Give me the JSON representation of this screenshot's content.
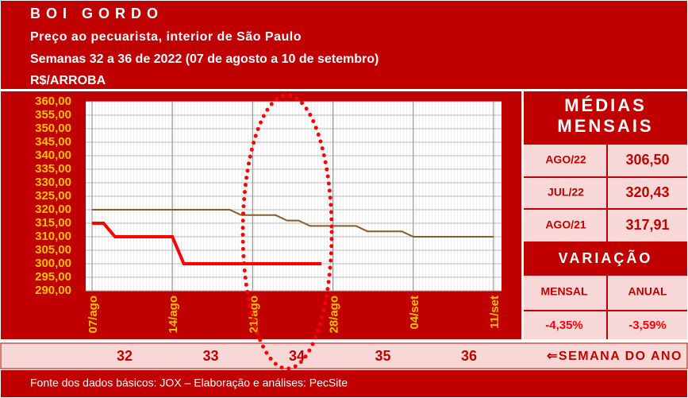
{
  "header": {
    "title": "BOI GORDO",
    "subtitle": "Preço ao pecuarista, interior de São Paulo",
    "period": "Semanas 32 a 36 de 2022 (07 de agosto a 10 de setembro)",
    "unit": "R$/ARROBA"
  },
  "chart_data": {
    "type": "line",
    "categories": [
      "07/ago",
      null,
      null,
      null,
      null,
      null,
      null,
      "14/ago",
      null,
      null,
      null,
      null,
      null,
      null,
      "21/ago",
      null,
      null,
      null,
      null,
      null,
      null,
      "28/ago",
      null,
      null,
      null,
      null,
      null,
      null,
      "04/set",
      null,
      null,
      null,
      null,
      null,
      null,
      "11/set"
    ],
    "series": [
      {
        "color": "#8b5a2b",
        "width": 2,
        "values": [
          320,
          320,
          320,
          320,
          320,
          320,
          320,
          320,
          320,
          320,
          320,
          320,
          320,
          318,
          318,
          318,
          318,
          316,
          316,
          314,
          314,
          314,
          314,
          314,
          312,
          312,
          312,
          312,
          310,
          310,
          310,
          310,
          310,
          310,
          310,
          310
        ]
      },
      {
        "color": "#ff0000",
        "width": 4,
        "values": [
          315,
          315,
          310,
          310,
          310,
          310,
          310,
          310,
          300,
          300,
          300,
          300,
          300,
          300,
          300,
          300,
          300,
          300,
          300,
          300,
          300,
          null,
          null,
          null,
          null,
          null,
          null,
          null,
          null,
          null,
          null,
          null,
          null,
          null,
          null,
          null
        ]
      }
    ],
    "ylim": [
      290,
      360
    ],
    "yticks": [
      {
        "value": 290,
        "label": "290,00"
      },
      {
        "value": 295,
        "label": "295,00"
      },
      {
        "value": 300,
        "label": "300,00"
      },
      {
        "value": 305,
        "label": "305,00"
      },
      {
        "value": 310,
        "label": "310,00"
      },
      {
        "value": 315,
        "label": "315,00"
      },
      {
        "value": 320,
        "label": "320,00"
      },
      {
        "value": 325,
        "label": "325,00"
      },
      {
        "value": 330,
        "label": "330,00"
      },
      {
        "value": 335,
        "label": "335,00"
      },
      {
        "value": 340,
        "label": "340,00"
      },
      {
        "value": 345,
        "label": "345,00"
      },
      {
        "value": 350,
        "label": "350,00"
      },
      {
        "value": 355,
        "label": "355,00"
      },
      {
        "value": 360,
        "label": "360,00"
      }
    ],
    "grid": true
  },
  "medias": {
    "title_lines": [
      "MÉDIAS",
      "MENSAIS"
    ],
    "rows": [
      [
        "AGO/22",
        "306,50"
      ],
      [
        "JUL/22",
        "320,43"
      ],
      [
        "AGO/21",
        "317,91"
      ]
    ]
  },
  "variacao": {
    "title": "VARIAÇÃO",
    "labels": [
      "MENSAL",
      "ANUAL"
    ],
    "values": [
      "-4,35%",
      "-3,59%"
    ]
  },
  "weeks": {
    "values": [
      "32",
      "33",
      "34",
      "35",
      "36"
    ],
    "label": "⇐SEMANA DO ANO"
  },
  "footer": "Fonte dos dados básicos: JOX – Elaboração e análises: PecSite"
}
